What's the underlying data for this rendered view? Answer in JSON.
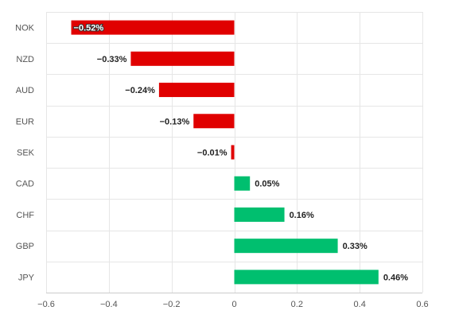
{
  "chart_data": {
    "type": "bar",
    "orientation": "horizontal",
    "categories": [
      "NOK",
      "NZD",
      "AUD",
      "EUR",
      "SEK",
      "CAD",
      "CHF",
      "GBP",
      "JPY"
    ],
    "values": [
      -0.52,
      -0.33,
      -0.24,
      -0.13,
      -0.01,
      0.05,
      0.16,
      0.33,
      0.46
    ],
    "data_labels": [
      "−0.52%",
      "−0.33%",
      "−0.24%",
      "−0.13%",
      "−0.01%",
      "0.05%",
      "0.16%",
      "0.33%",
      "0.46%"
    ],
    "xlim": [
      -0.6,
      0.6
    ],
    "xticks": [
      -0.6,
      -0.4,
      -0.2,
      0,
      0.2,
      0.4,
      0.6
    ],
    "xtick_labels": [
      "−0.6",
      "−0.4",
      "−0.2",
      "0",
      "0.2",
      "0.4",
      "0.6"
    ],
    "grid": true,
    "colors": {
      "negative": "#e00000",
      "positive": "#00bf6f"
    }
  }
}
